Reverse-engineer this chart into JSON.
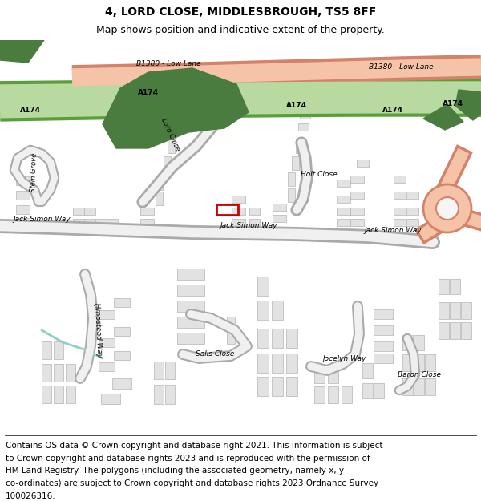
{
  "title_line1": "4, LORD CLOSE, MIDDLESBROUGH, TS5 8FF",
  "title_line2": "Map shows position and indicative extent of the property.",
  "copyright_lines": [
    "Contains OS data © Crown copyright and database right 2021. This information is subject",
    "to Crown copyright and database rights 2023 and is reproduced with the permission of",
    "HM Land Registry. The polygons (including the associated geometry, namely x, y",
    "co-ordinates) are subject to Crown copyright and database rights 2023 Ordnance Survey",
    "100026316."
  ],
  "map_bg": "#f5f5f5",
  "building_fill": "#e2e2e2",
  "building_outline": "#b5b5b5",
  "green_dark": "#4a7c3f",
  "road_a174_fill": "#b8d9a0",
  "road_a174_outline": "#5a9e3a",
  "road_b1380_fill": "#f5c4a8",
  "road_b1380_outline": "#d4836a",
  "road_grey_out": "#aaaaaa",
  "road_grey_in": "#f0f0f0",
  "property_color": "#cc0000",
  "water_color": "#90cec8",
  "title_fontsize": 10,
  "subtitle_fontsize": 9,
  "copyright_fontsize": 7.5,
  "label_fontsize": 6.5
}
